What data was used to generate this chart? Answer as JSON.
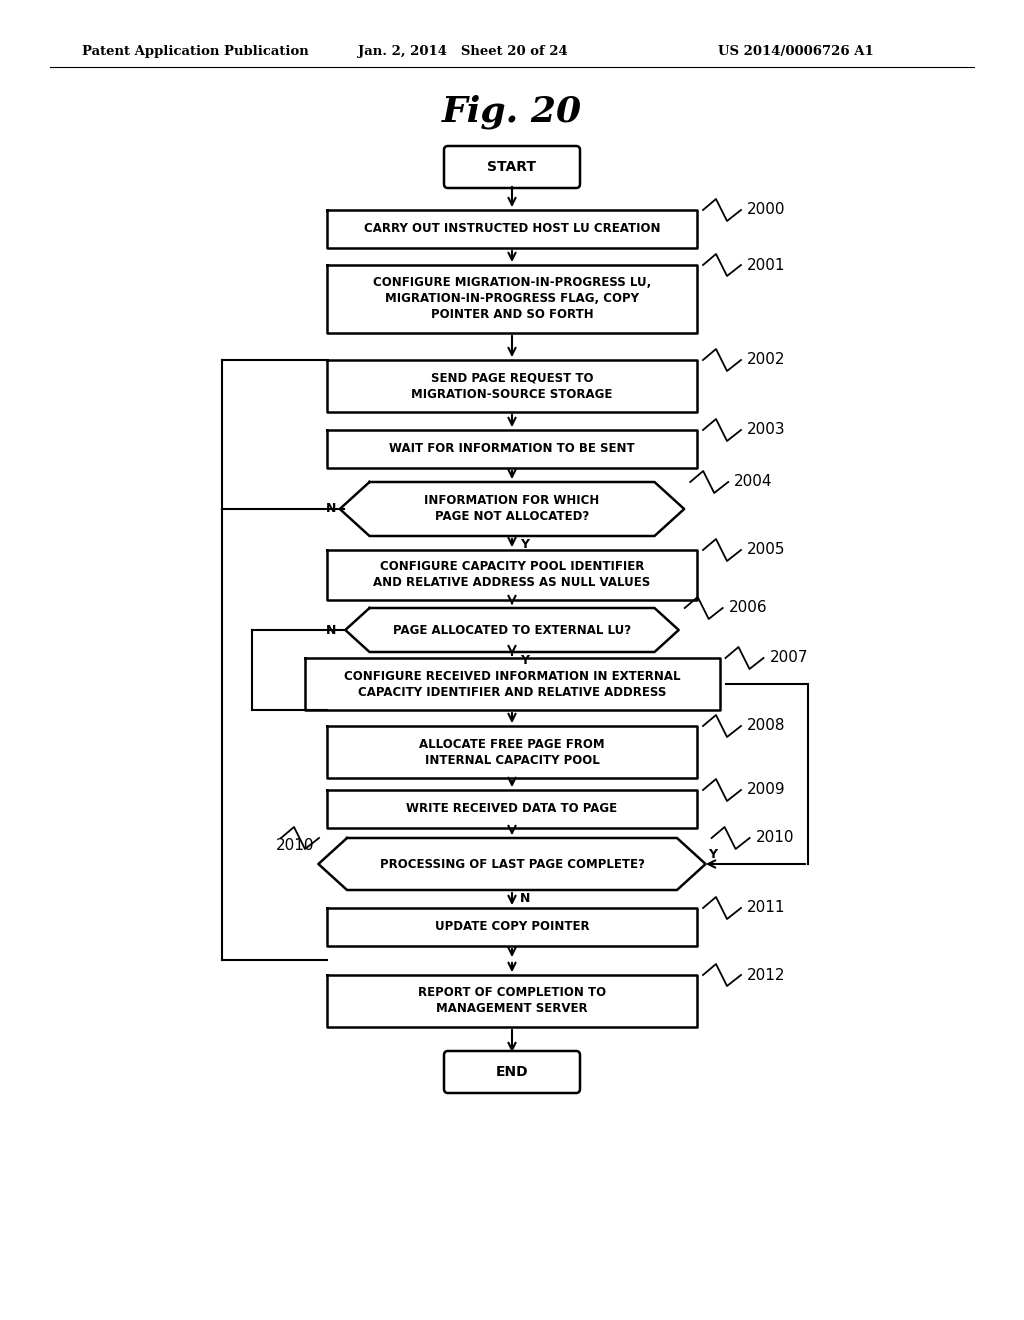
{
  "bg_color": "#ffffff",
  "header_left": "Patent Application Publication",
  "header_mid": "Jan. 2, 2014   Sheet 20 of 24",
  "header_right": "US 2014/0006726 A1",
  "fig_label": "Fig. 20"
}
